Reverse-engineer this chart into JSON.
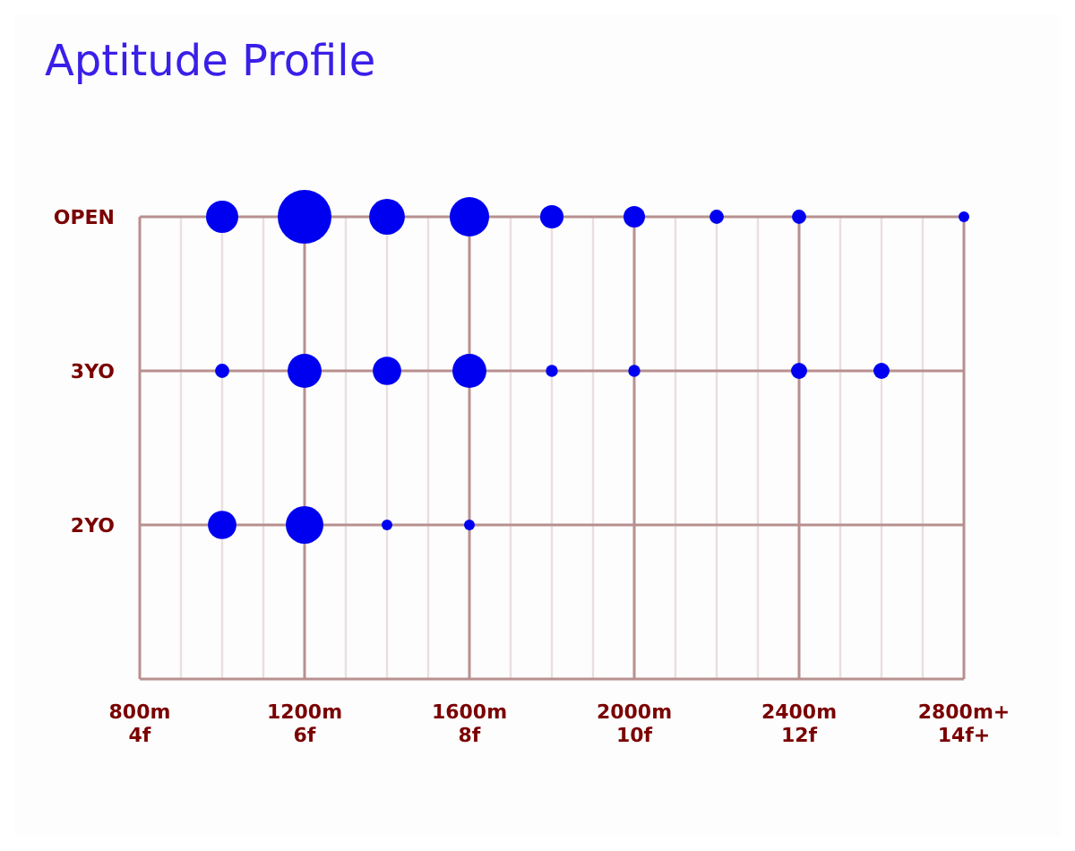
{
  "chart_data": {
    "type": "bubble",
    "title": "Aptitude Profile",
    "orientation": "horizontal",
    "grid": true,
    "categories": [
      "OPEN",
      "3YO",
      "2YO"
    ],
    "xlim": [
      800,
      2800
    ],
    "xticks": [
      {
        "value": 800,
        "label": "800m"
      },
      {
        "value": 1200,
        "label": "1200m"
      },
      {
        "value": 1600,
        "label": "1600m"
      },
      {
        "value": 2000,
        "label": "2000m"
      },
      {
        "value": 2400,
        "label": "2400m"
      },
      {
        "value": 2800,
        "label": "2800m+"
      }
    ],
    "x2lim": [
      4,
      14
    ],
    "x2ticks": [
      {
        "value": 4,
        "label": "4f"
      },
      {
        "value": 6,
        "label": "6f"
      },
      {
        "value": 8,
        "label": "8f"
      },
      {
        "value": 10,
        "label": "10f"
      },
      {
        "value": 12,
        "label": "12f"
      },
      {
        "value": 14,
        "label": "14f+"
      }
    ],
    "series": [
      {
        "color": "#0000f0",
        "values": [
          1000,
          1000,
          1000
        ],
        "sizes": [
          0.36,
          0.07,
          0.28
        ]
      },
      {
        "color": "#0000f0",
        "values": [
          1200,
          1200,
          1200
        ],
        "sizes": [
          1,
          0.4,
          0.49
        ]
      },
      {
        "color": "#0000f0",
        "values": [
          1400,
          1400,
          1400
        ],
        "sizes": [
          0.44,
          0.28,
          0.04
        ]
      },
      {
        "color": "#0000f0",
        "values": [
          1600,
          1600,
          1600
        ],
        "sizes": [
          0.54,
          0.4,
          0.04
        ]
      },
      {
        "color": "#0000f0",
        "values": [
          1800,
          1800,
          null
        ],
        "sizes": [
          0.19,
          0.05,
          null
        ]
      },
      {
        "color": "#0000f0",
        "values": [
          2000,
          2000,
          null
        ],
        "sizes": [
          0.16,
          0.05,
          null
        ]
      },
      {
        "color": "#0000f0",
        "values": [
          2200,
          null,
          null
        ],
        "sizes": [
          0.07,
          null,
          null
        ]
      },
      {
        "color": "#0000f0",
        "values": [
          2400,
          2400,
          null
        ],
        "sizes": [
          0.07,
          0.09,
          null
        ]
      },
      {
        "color": "#0000f0",
        "values": [
          null,
          2600,
          null
        ],
        "sizes": [
          null,
          0.09,
          null
        ]
      },
      {
        "color": "#0000f0",
        "values": [
          2800,
          null,
          null
        ],
        "sizes": [
          0.04,
          null,
          null
        ]
      }
    ]
  }
}
